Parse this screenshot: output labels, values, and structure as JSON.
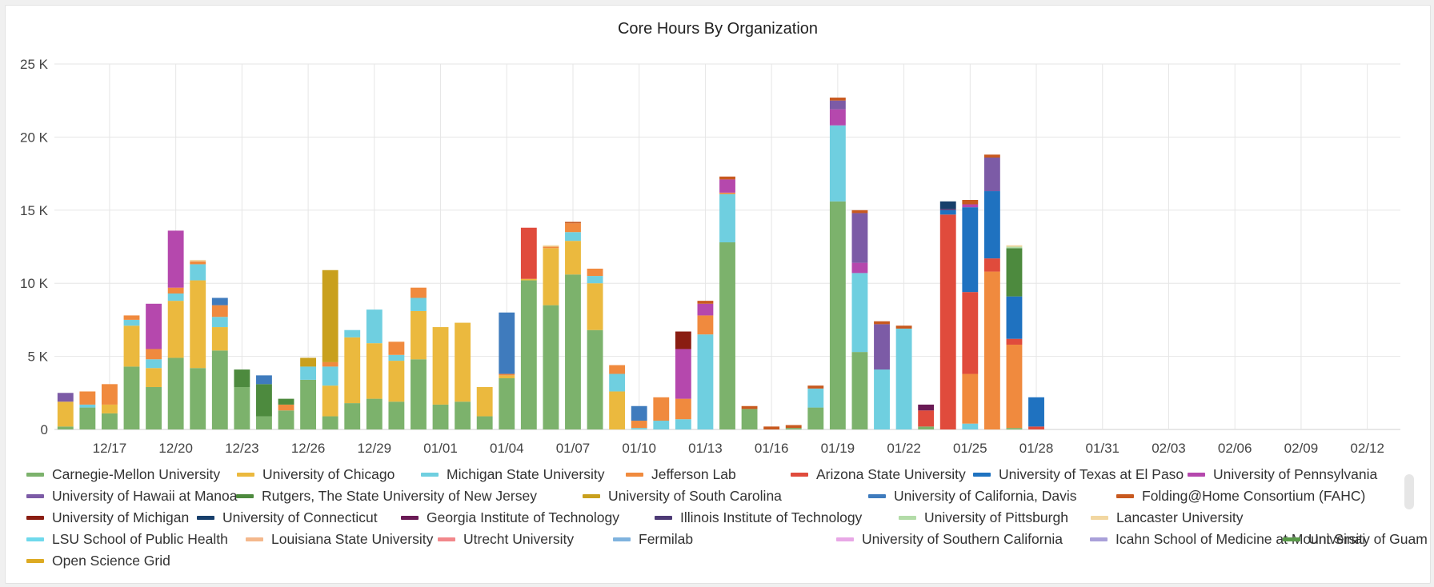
{
  "chart_data": {
    "type": "bar",
    "stacked": true,
    "title": "Core Hours By Organization",
    "xlabel": "",
    "ylabel": "",
    "ylim": [
      0,
      25000
    ],
    "yticks": [
      0,
      5000,
      10000,
      15000,
      20000,
      25000
    ],
    "ytick_labels": [
      "0",
      "5 K",
      "10 K",
      "15 K",
      "20 K",
      "25 K"
    ],
    "grid": true,
    "legend_position": "bottom",
    "start_date": "12/15",
    "xtick_labels": [
      "12/17",
      "12/20",
      "12/23",
      "12/26",
      "12/29",
      "01/01",
      "01/04",
      "01/07",
      "01/10",
      "01/13",
      "01/16",
      "01/19",
      "01/22",
      "01/25",
      "01/28",
      "01/31",
      "02/03",
      "02/06",
      "02/09",
      "02/12"
    ],
    "categories": [
      "12/15",
      "12/16",
      "12/17",
      "12/18",
      "12/19",
      "12/20",
      "12/21",
      "12/22",
      "12/23",
      "12/24",
      "12/25",
      "12/26",
      "12/27",
      "12/28",
      "12/29",
      "12/30",
      "12/31",
      "01/01",
      "01/02",
      "01/03",
      "01/04",
      "01/05",
      "01/06",
      "01/07",
      "01/08",
      "01/09",
      "01/10",
      "01/11",
      "01/12",
      "01/13",
      "01/14",
      "01/15",
      "01/16",
      "01/17",
      "01/18",
      "01/19",
      "01/20",
      "01/21",
      "01/22",
      "01/23",
      "01/24",
      "01/25",
      "01/26",
      "01/27",
      "01/28",
      "01/29",
      "01/30",
      "01/31",
      "02/01",
      "02/02",
      "02/03",
      "02/04",
      "02/05",
      "02/06",
      "02/07",
      "02/08",
      "02/09",
      "02/10",
      "02/11",
      "02/12",
      "02/13"
    ],
    "stacks": [
      [
        [
          "Carnegie-Mellon University",
          200
        ],
        [
          "University of Chicago",
          1700
        ],
        [
          "University of Hawaii at Manoa",
          600
        ]
      ],
      [
        [
          "Carnegie-Mellon University",
          1500
        ],
        [
          "Michigan State University",
          200
        ],
        [
          "Jefferson Lab",
          900
        ]
      ],
      [
        [
          "Carnegie-Mellon University",
          1100
        ],
        [
          "University of Chicago",
          600
        ],
        [
          "Jefferson Lab",
          1400
        ]
      ],
      [
        [
          "Carnegie-Mellon University",
          4300
        ],
        [
          "University of Chicago",
          2800
        ],
        [
          "Michigan State University",
          400
        ],
        [
          "Jefferson Lab",
          300
        ]
      ],
      [
        [
          "Carnegie-Mellon University",
          2900
        ],
        [
          "University of Chicago",
          1300
        ],
        [
          "Michigan State University",
          600
        ],
        [
          "Jefferson Lab",
          700
        ],
        [
          "University of Pennsylvania",
          3100
        ]
      ],
      [
        [
          "Carnegie-Mellon University",
          4900
        ],
        [
          "University of Chicago",
          3900
        ],
        [
          "Michigan State University",
          500
        ],
        [
          "Jefferson Lab",
          400
        ],
        [
          "University of Pennsylvania",
          3900
        ]
      ],
      [
        [
          "Carnegie-Mellon University",
          4200
        ],
        [
          "University of Chicago",
          6000
        ],
        [
          "Michigan State University",
          1100
        ],
        [
          "Jefferson Lab",
          200
        ],
        [
          "Lancaster University",
          100
        ]
      ],
      [
        [
          "Carnegie-Mellon University",
          5400
        ],
        [
          "University of Chicago",
          1600
        ],
        [
          "Michigan State University",
          700
        ],
        [
          "Jefferson Lab",
          800
        ],
        [
          "University of California, Davis",
          500
        ]
      ],
      [
        [
          "Carnegie-Mellon University",
          2900
        ],
        [
          "Rutgers, The State University of New Jersey",
          1200
        ]
      ],
      [
        [
          "Carnegie-Mellon University",
          900
        ],
        [
          "Rutgers, The State University of New Jersey",
          2200
        ],
        [
          "University of California, Davis",
          600
        ]
      ],
      [
        [
          "Carnegie-Mellon University",
          1300
        ],
        [
          "Jefferson Lab",
          400
        ],
        [
          "Rutgers, The State University of New Jersey",
          400
        ]
      ],
      [
        [
          "Carnegie-Mellon University",
          3400
        ],
        [
          "Michigan State University",
          900
        ],
        [
          "University of South Carolina",
          600
        ]
      ],
      [
        [
          "Carnegie-Mellon University",
          900
        ],
        [
          "University of Chicago",
          2100
        ],
        [
          "Michigan State University",
          1300
        ],
        [
          "Jefferson Lab",
          300
        ],
        [
          "University of South Carolina",
          6300
        ]
      ],
      [
        [
          "Carnegie-Mellon University",
          1800
        ],
        [
          "University of Chicago",
          4500
        ],
        [
          "Michigan State University",
          500
        ]
      ],
      [
        [
          "Carnegie-Mellon University",
          2100
        ],
        [
          "University of Chicago",
          3800
        ],
        [
          "Michigan State University",
          2300
        ]
      ],
      [
        [
          "Carnegie-Mellon University",
          1900
        ],
        [
          "University of Chicago",
          2800
        ],
        [
          "Michigan State University",
          400
        ],
        [
          "Jefferson Lab",
          900
        ]
      ],
      [
        [
          "Carnegie-Mellon University",
          4800
        ],
        [
          "University of Chicago",
          3300
        ],
        [
          "Michigan State University",
          900
        ],
        [
          "Jefferson Lab",
          700
        ]
      ],
      [
        [
          "Carnegie-Mellon University",
          1700
        ],
        [
          "University of Chicago",
          5300
        ]
      ],
      [
        [
          "Carnegie-Mellon University",
          1900
        ],
        [
          "University of Chicago",
          5400
        ]
      ],
      [
        [
          "Carnegie-Mellon University",
          900
        ],
        [
          "University of Chicago",
          2000
        ]
      ],
      [
        [
          "Carnegie-Mellon University",
          3500
        ],
        [
          "University of Chicago",
          200
        ],
        [
          "Jefferson Lab",
          100
        ],
        [
          "University of California, Davis",
          4200
        ]
      ],
      [
        [
          "Carnegie-Mellon University",
          10200
        ],
        [
          "University of Chicago",
          100
        ],
        [
          "Arizona State University",
          3500
        ]
      ],
      [
        [
          "Carnegie-Mellon University",
          8500
        ],
        [
          "University of Chicago",
          3900
        ],
        [
          "Jefferson Lab",
          100
        ],
        [
          "Lancaster University",
          100
        ]
      ],
      [
        [
          "Carnegie-Mellon University",
          10600
        ],
        [
          "University of Chicago",
          2300
        ],
        [
          "Michigan State University",
          600
        ],
        [
          "Jefferson Lab",
          600
        ],
        [
          "Folding@Home Consortium (FAHC)",
          100
        ]
      ],
      [
        [
          "Carnegie-Mellon University",
          6800
        ],
        [
          "University of Chicago",
          3200
        ],
        [
          "Michigan State University",
          500
        ],
        [
          "Jefferson Lab",
          500
        ]
      ],
      [
        [
          "University of Chicago",
          2600
        ],
        [
          "Michigan State University",
          1200
        ],
        [
          "Jefferson Lab",
          600
        ]
      ],
      [
        [
          "Michigan State University",
          100
        ],
        [
          "Jefferson Lab",
          500
        ],
        [
          "University of California, Davis",
          1000
        ]
      ],
      [
        [
          "Michigan State University",
          600
        ],
        [
          "Jefferson Lab",
          1600
        ]
      ],
      [
        [
          "Michigan State University",
          700
        ],
        [
          "Jefferson Lab",
          1400
        ],
        [
          "University of Pennsylvania",
          3400
        ],
        [
          "University of Michigan",
          1200
        ]
      ],
      [
        [
          "Michigan State University",
          6500
        ],
        [
          "Jefferson Lab",
          1300
        ],
        [
          "University of Pennsylvania",
          800
        ],
        [
          "Folding@Home Consortium (FAHC)",
          200
        ]
      ],
      [
        [
          "Carnegie-Mellon University",
          12800
        ],
        [
          "Michigan State University",
          3300
        ],
        [
          "Jefferson Lab",
          100
        ],
        [
          "University of Pennsylvania",
          900
        ],
        [
          "Folding@Home Consortium (FAHC)",
          200
        ]
      ],
      [
        [
          "Carnegie-Mellon University",
          1400
        ],
        [
          "Folding@Home Consortium (FAHC)",
          200
        ]
      ],
      [
        [
          "Folding@Home Consortium (FAHC)",
          200
        ]
      ],
      [
        [
          "Carnegie-Mellon University",
          100
        ],
        [
          "Folding@Home Consortium (FAHC)",
          200
        ]
      ],
      [
        [
          "Carnegie-Mellon University",
          1500
        ],
        [
          "Michigan State University",
          1300
        ],
        [
          "Folding@Home Consortium (FAHC)",
          200
        ]
      ],
      [
        [
          "Carnegie-Mellon University",
          15600
        ],
        [
          "Michigan State University",
          5200
        ],
        [
          "University of Pennsylvania",
          1100
        ],
        [
          "University of Hawaii at Manoa",
          600
        ],
        [
          "Folding@Home Consortium (FAHC)",
          200
        ]
      ],
      [
        [
          "Carnegie-Mellon University",
          5300
        ],
        [
          "Michigan State University",
          5400
        ],
        [
          "University of Pennsylvania",
          700
        ],
        [
          "University of Hawaii at Manoa",
          3400
        ],
        [
          "Folding@Home Consortium (FAHC)",
          200
        ]
      ],
      [
        [
          "Michigan State University",
          4100
        ],
        [
          "University of Hawaii at Manoa",
          3100
        ],
        [
          "Folding@Home Consortium (FAHC)",
          200
        ]
      ],
      [
        [
          "Michigan State University",
          6900
        ],
        [
          "Folding@Home Consortium (FAHC)",
          200
        ]
      ],
      [
        [
          "Carnegie-Mellon University",
          200
        ],
        [
          "Arizona State University",
          1100
        ],
        [
          "Georgia Institute of Technology",
          400
        ]
      ],
      [
        [
          "Arizona State University",
          14700
        ],
        [
          "University of Texas at El Paso",
          300
        ],
        [
          "Illinois Institute of Technology",
          100
        ],
        [
          "University of Connecticut",
          500
        ]
      ],
      [
        [
          "Michigan State University",
          400
        ],
        [
          "Jefferson Lab",
          3400
        ],
        [
          "Arizona State University",
          5600
        ],
        [
          "University of Texas at El Paso",
          5800
        ],
        [
          "University of Pennsylvania",
          200
        ],
        [
          "Folding@Home Consortium (FAHC)",
          300
        ]
      ],
      [
        [
          "Jefferson Lab",
          10800
        ],
        [
          "Arizona State University",
          900
        ],
        [
          "University of Texas at El Paso",
          4600
        ],
        [
          "University of Hawaii at Manoa",
          2300
        ],
        [
          "Folding@Home Consortium (FAHC)",
          200
        ]
      ],
      [
        [
          "Carnegie-Mellon University",
          100
        ],
        [
          "Jefferson Lab",
          5700
        ],
        [
          "Arizona State University",
          400
        ],
        [
          "University of Texas at El Paso",
          2900
        ],
        [
          "Rutgers, The State University of New Jersey",
          3300
        ],
        [
          "University of Pittsburgh",
          100
        ],
        [
          "Lancaster University",
          100
        ]
      ],
      [
        [
          "Arizona State University",
          200
        ],
        [
          "University of Texas at El Paso",
          2000
        ]
      ],
      [],
      [],
      [],
      [],
      [],
      [],
      [],
      [],
      [],
      [],
      [],
      [],
      [],
      [],
      [],
      []
    ]
  },
  "legend": [
    {
      "label": "Carnegie-Mellon University",
      "color": "#7cb26c"
    },
    {
      "label": "University of Chicago",
      "color": "#ebb93e"
    },
    {
      "label": "Michigan State University",
      "color": "#6fcfe0"
    },
    {
      "label": "Jefferson Lab",
      "color": "#f08a3e"
    },
    {
      "label": "Arizona State University",
      "color": "#e04b3c"
    },
    {
      "label": "University of Texas at El Paso",
      "color": "#1f72c0"
    },
    {
      "label": "University of Pennsylvania",
      "color": "#b548ad"
    },
    {
      "label": "University of Hawaii at Manoa",
      "color": "#7c5ba6"
    },
    {
      "label": "Rutgers, The State University of New Jersey",
      "color": "#4d8a3e"
    },
    {
      "label": "University of South Carolina",
      "color": "#c9a01d"
    },
    {
      "label": "University of California, Davis",
      "color": "#3f7bbd"
    },
    {
      "label": "Folding@Home Consortium (FAHC)",
      "color": "#c8591f"
    },
    {
      "label": "University of Michigan",
      "color": "#8a1d12"
    },
    {
      "label": "University of Connecticut",
      "color": "#173f6b"
    },
    {
      "label": "Georgia Institute of Technology",
      "color": "#6a1a55"
    },
    {
      "label": "Illinois Institute of Technology",
      "color": "#4d3a75"
    },
    {
      "label": "University of Pittsburgh",
      "color": "#b3dca8"
    },
    {
      "label": "Lancaster University",
      "color": "#f2d7a1"
    },
    {
      "label": "LSU School of Public Health",
      "color": "#6fd9ec"
    },
    {
      "label": "Louisiana State University",
      "color": "#f4b88c"
    },
    {
      "label": "Utrecht University",
      "color": "#f2878b"
    },
    {
      "label": "Fermilab",
      "color": "#7fb3de"
    },
    {
      "label": "University of Southern California",
      "color": "#e8a8e6"
    },
    {
      "label": "Icahn School of Medicine at Mount Sinai",
      "color": "#a9a0d9"
    },
    {
      "label": "University of Guam",
      "color": "#5a9a4a"
    },
    {
      "label": "Open Science Grid",
      "color": "#ddaa22"
    }
  ]
}
